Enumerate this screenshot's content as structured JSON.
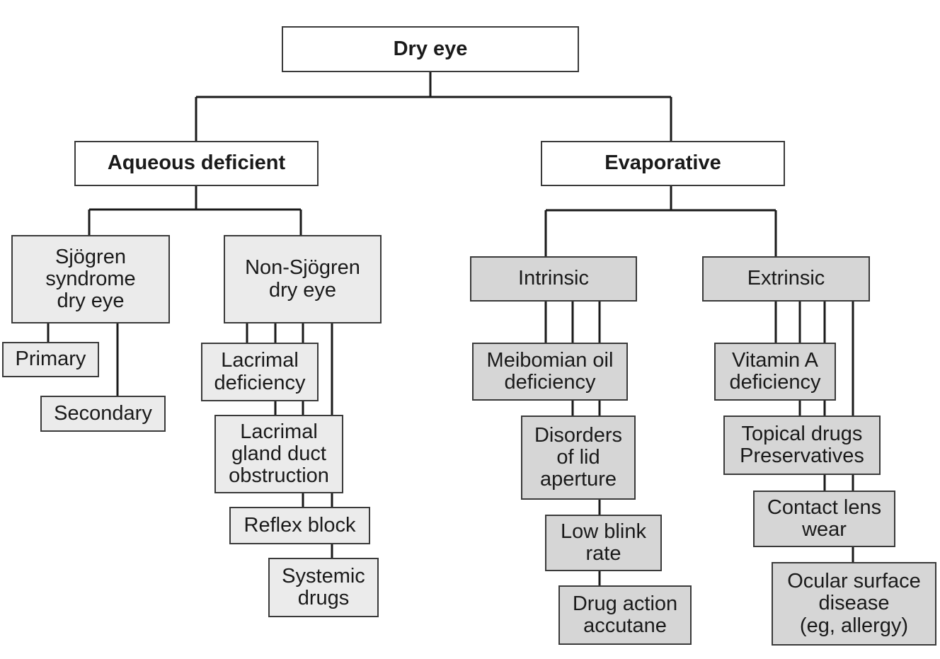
{
  "diagram": {
    "root": "Dry eye",
    "aqueous": {
      "title": "Aqueous deficient",
      "sjogren": {
        "title": "Sjögren\nsyndrome\ndry eye",
        "primary": "Primary",
        "secondary": "Secondary"
      },
      "non_sjogren": {
        "title": "Non-Sjögren\ndry eye",
        "lacrimal_deficiency": "Lacrimal\ndeficiency",
        "duct_obstruction": "Lacrimal\ngland duct\nobstruction",
        "reflex_block": "Reflex block",
        "systemic_drugs": "Systemic\ndrugs"
      }
    },
    "evaporative": {
      "title": "Evaporative",
      "intrinsic": {
        "title": "Intrinsic",
        "meibomian": "Meibomian oil\ndeficiency",
        "lid_aperture": "Disorders\nof lid\naperture",
        "blink_rate": "Low blink\nrate",
        "drug_action": "Drug action\naccutane"
      },
      "extrinsic": {
        "title": "Extrinsic",
        "vitamin_a": "Vitamin A\ndeficiency",
        "topical_drugs": "Topical drugs\nPreservatives",
        "contact_lens": "Contact lens\nwear",
        "ocular_surface": "Ocular surface\ndisease\n(eg, allergy)"
      }
    }
  }
}
